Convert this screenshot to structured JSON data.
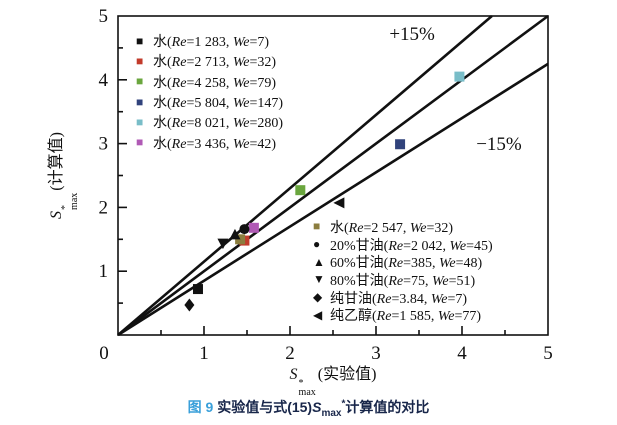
{
  "figure": {
    "caption": {
      "fig_label": "图 9",
      "pre": "实验值与式(15)",
      "sym": "S",
      "sub": "max",
      "sup": "*",
      "post": "计算值的对比",
      "fig_color": "#3aa0da",
      "text_color": "#18264a"
    }
  },
  "chart_data": {
    "type": "scatter",
    "title": "",
    "xlabel_parts": {
      "sym": "S",
      "sup": "*",
      "sub": "max",
      "suffix": "(实验值)"
    },
    "ylabel_parts": {
      "sym": "S",
      "sup": "*",
      "sub": "max",
      "suffix": "(计算值)"
    },
    "xlim": [
      0,
      5
    ],
    "ylim": [
      0,
      5
    ],
    "xticks": [
      0,
      1,
      2,
      3,
      4,
      5
    ],
    "yticks": [
      0,
      1,
      2,
      3,
      4,
      5
    ],
    "minor_tick_step": 0.5,
    "grid": false,
    "axis_color": "#111111",
    "line_color": "#111111",
    "reference_lines": [
      {
        "slope": 1.15,
        "label": "+15%",
        "label_at": [
          3.42,
          4.62
        ]
      },
      {
        "slope": 1.0,
        "label": "",
        "label_at": null
      },
      {
        "slope": 0.85,
        "label": "−15%",
        "label_at": [
          4.43,
          2.9
        ]
      }
    ],
    "series": [
      {
        "name": "水(Re=1 283, We=7)",
        "marker": "square",
        "color": "#111111",
        "points": [
          [
            0.93,
            0.72
          ]
        ]
      },
      {
        "name": "水(Re=2 713, We=32)",
        "marker": "square",
        "color": "#c23b2b",
        "points": [
          [
            1.47,
            1.48
          ]
        ]
      },
      {
        "name": "水(Re=4 258, We=79)",
        "marker": "square",
        "color": "#6aa63e",
        "points": [
          [
            2.12,
            2.27
          ]
        ]
      },
      {
        "name": "水(Re=5 804, We=147)",
        "marker": "square",
        "color": "#31437c",
        "points": [
          [
            3.28,
            2.99
          ]
        ]
      },
      {
        "name": "水(Re=8 021, We=280)",
        "marker": "square",
        "color": "#79bdc8",
        "points": [
          [
            3.97,
            4.05
          ]
        ]
      },
      {
        "name": "水(Re=3 436, We=42)",
        "marker": "square",
        "color": "#b05ab5",
        "points": [
          [
            1.58,
            1.68
          ]
        ]
      },
      {
        "name": "水(Re=2 547, We=32)",
        "marker": "square",
        "color": "#8b7d3e",
        "points": [
          [
            1.42,
            1.5
          ]
        ]
      },
      {
        "name": "20%甘油(Re=2 042, We=45)",
        "marker": "circle",
        "color": "#111111",
        "points": [
          [
            1.47,
            1.66
          ]
        ]
      },
      {
        "name": "60%甘油(Re=385, We=48)",
        "marker": "triangle-up",
        "color": "#111111",
        "points": [
          [
            1.36,
            1.57
          ]
        ]
      },
      {
        "name": "80%甘油(Re=75, We=51)",
        "marker": "triangle-down",
        "color": "#111111",
        "points": [
          [
            1.22,
            1.44
          ]
        ]
      },
      {
        "name": "纯甘油(Re=3.84, We=7)",
        "marker": "diamond",
        "color": "#111111",
        "points": [
          [
            0.83,
            0.47
          ]
        ]
      },
      {
        "name": "纯乙醇(Re=1 585, We=77)",
        "marker": "triangle-left",
        "color": "#111111",
        "points": [
          [
            2.58,
            2.07
          ]
        ]
      }
    ],
    "legend_top": {
      "position": "upper-left-inside",
      "entries": [
        {
          "marker": "square",
          "color": "#111111",
          "parts": [
            "水(",
            "Re",
            "=1 283, ",
            "We",
            "=7)"
          ]
        },
        {
          "marker": "square",
          "color": "#c23b2b",
          "parts": [
            "水(",
            "Re",
            "=2 713, ",
            "We",
            "=32)"
          ]
        },
        {
          "marker": "square",
          "color": "#6aa63e",
          "parts": [
            "水(",
            "Re",
            "=4 258, ",
            "We",
            "=79)"
          ]
        },
        {
          "marker": "square",
          "color": "#31437c",
          "parts": [
            "水(",
            "Re",
            "=5 804, ",
            "We",
            "=147)"
          ]
        },
        {
          "marker": "square",
          "color": "#79bdc8",
          "parts": [
            "水(",
            "Re",
            "=8 021, ",
            "We",
            "=280)"
          ]
        },
        {
          "marker": "square",
          "color": "#b05ab5",
          "parts": [
            "水(",
            "Re",
            "=3 436, ",
            "We",
            "=42)"
          ]
        }
      ]
    },
    "legend_bottom": {
      "position": "lower-right-inside",
      "entries": [
        {
          "marker": "square",
          "color": "#8b7d3e",
          "parts": [
            "水(",
            "Re",
            "=2 547, ",
            "We",
            "=32)"
          ]
        },
        {
          "marker": "circle",
          "color": "#111111",
          "parts": [
            "20%甘油(",
            "Re",
            "=2 042, ",
            "We",
            "=45)"
          ]
        },
        {
          "marker": "triangle-up",
          "color": "#111111",
          "parts": [
            "60%甘油(",
            "Re",
            "=385, ",
            "We",
            "=48)"
          ]
        },
        {
          "marker": "triangle-down",
          "color": "#111111",
          "parts": [
            "80%甘油(",
            "Re",
            "=75, ",
            "We",
            "=51)"
          ]
        },
        {
          "marker": "diamond",
          "color": "#111111",
          "parts": [
            "纯甘油(",
            "Re",
            "=3.84, ",
            "We",
            "=7)"
          ]
        },
        {
          "marker": "triangle-left",
          "color": "#111111",
          "parts": [
            "纯乙醇(",
            "Re",
            "=1 585, ",
            "We",
            "=77)"
          ]
        }
      ]
    }
  }
}
